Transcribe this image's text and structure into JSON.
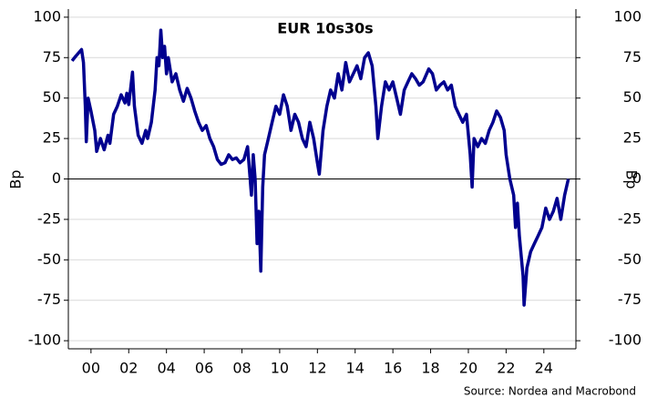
{
  "chart_data": {
    "type": "line",
    "title": "EUR 10s30s",
    "ylabel": "Bp",
    "y2label": "Bp",
    "source": "Source: Nordea and Macrobond",
    "xlim": [
      1998.8,
      2025.7
    ],
    "xticks": [
      {
        "value": 2000,
        "label": "00"
      },
      {
        "value": 2002,
        "label": "02"
      },
      {
        "value": 2004,
        "label": "04"
      },
      {
        "value": 2006,
        "label": "06"
      },
      {
        "value": 2008,
        "label": "08"
      },
      {
        "value": 2010,
        "label": "10"
      },
      {
        "value": 2012,
        "label": "12"
      },
      {
        "value": 2014,
        "label": "14"
      },
      {
        "value": 2016,
        "label": "16"
      },
      {
        "value": 2018,
        "label": "18"
      },
      {
        "value": 2020,
        "label": "20"
      },
      {
        "value": 2022,
        "label": "22"
      },
      {
        "value": 2024,
        "label": "24"
      }
    ],
    "ylim": [
      -105,
      105
    ],
    "yticks": [
      -100,
      -75,
      -50,
      -25,
      0,
      25,
      50,
      75,
      100
    ],
    "y2lim": [
      -105,
      105
    ],
    "y2ticks": [
      -100,
      -75,
      -50,
      -25,
      0,
      25,
      50,
      75,
      100
    ],
    "grid": true,
    "zero_line": true,
    "x": [
      1999.0,
      1999.2,
      1999.5,
      1999.6,
      1999.7,
      1999.75,
      1999.85,
      2000.0,
      2000.2,
      2000.3,
      2000.5,
      2000.7,
      2000.9,
      2001.0,
      2001.2,
      2001.4,
      2001.6,
      2001.8,
      2001.9,
      2002.0,
      2002.2,
      2002.3,
      2002.5,
      2002.7,
      2002.9,
      2003.0,
      2003.2,
      2003.4,
      2003.5,
      2003.6,
      2003.7,
      2003.8,
      2003.9,
      2004.0,
      2004.1,
      2004.3,
      2004.5,
      2004.7,
      2004.9,
      2005.1,
      2005.3,
      2005.5,
      2005.7,
      2005.9,
      2006.1,
      2006.3,
      2006.5,
      2006.7,
      2006.9,
      2007.1,
      2007.3,
      2007.5,
      2007.7,
      2007.9,
      2008.1,
      2008.3,
      2008.4,
      2008.5,
      2008.6,
      2008.7,
      2008.8,
      2008.9,
      2009.0,
      2009.1,
      2009.2,
      2009.4,
      2009.6,
      2009.8,
      2010.0,
      2010.2,
      2010.4,
      2010.6,
      2010.8,
      2011.0,
      2011.2,
      2011.4,
      2011.6,
      2011.8,
      2012.0,
      2012.1,
      2012.3,
      2012.5,
      2012.7,
      2012.9,
      2013.1,
      2013.3,
      2013.5,
      2013.7,
      2013.9,
      2014.1,
      2014.3,
      2014.5,
      2014.7,
      2014.9,
      2015.1,
      2015.2,
      2015.4,
      2015.6,
      2015.8,
      2016.0,
      2016.2,
      2016.4,
      2016.6,
      2016.8,
      2017.0,
      2017.2,
      2017.4,
      2017.6,
      2017.9,
      2018.1,
      2018.3,
      2018.5,
      2018.7,
      2018.9,
      2019.1,
      2019.3,
      2019.5,
      2019.7,
      2019.9,
      2020.1,
      2020.2,
      2020.3,
      2020.5,
      2020.7,
      2020.9,
      2021.1,
      2021.3,
      2021.5,
      2021.7,
      2021.9,
      2022.0,
      2022.2,
      2022.4,
      2022.5,
      2022.6,
      2022.7,
      2022.9,
      2022.95,
      2023.1,
      2023.3,
      2023.5,
      2023.7,
      2023.9,
      2024.1,
      2024.3,
      2024.5,
      2024.7,
      2024.9,
      2025.1,
      2025.3
    ],
    "series": [
      {
        "name": "EUR 10s30s",
        "color": "#00008f",
        "values": [
          73,
          76,
          80,
          72,
          45,
          23,
          50,
          42,
          30,
          17,
          25,
          18,
          27,
          22,
          40,
          45,
          52,
          47,
          53,
          46,
          66,
          45,
          27,
          22,
          30,
          25,
          35,
          55,
          75,
          70,
          92,
          75,
          82,
          65,
          75,
          60,
          65,
          55,
          48,
          56,
          50,
          42,
          35,
          30,
          33,
          25,
          20,
          12,
          9,
          10,
          15,
          12,
          13,
          10,
          12,
          20,
          5,
          -10,
          15,
          0,
          -40,
          -20,
          -57,
          -5,
          15,
          25,
          35,
          45,
          40,
          52,
          45,
          30,
          40,
          35,
          25,
          20,
          35,
          25,
          10,
          3,
          30,
          45,
          55,
          50,
          65,
          55,
          72,
          60,
          65,
          70,
          62,
          75,
          78,
          70,
          45,
          25,
          45,
          60,
          55,
          60,
          50,
          40,
          55,
          60,
          65,
          62,
          58,
          60,
          68,
          65,
          55,
          58,
          60,
          55,
          58,
          45,
          40,
          35,
          40,
          15,
          -5,
          25,
          20,
          25,
          22,
          30,
          35,
          42,
          38,
          30,
          15,
          0,
          -10,
          -30,
          -15,
          -35,
          -60,
          -78,
          -55,
          -45,
          -40,
          -35,
          -30,
          -18,
          -25,
          -20,
          -12,
          -25,
          -10,
          0
        ]
      }
    ]
  }
}
